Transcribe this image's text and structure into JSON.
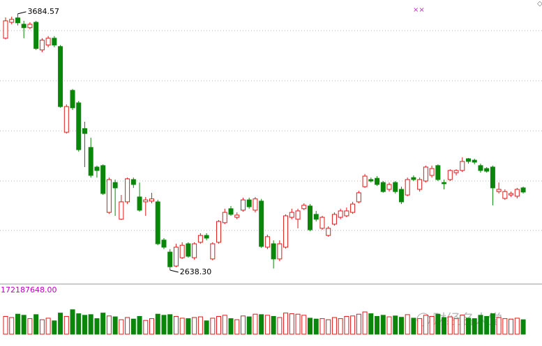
{
  "chart_data": {
    "type": "candlestick",
    "up_color": "#e01818",
    "down_color": "#0a860a",
    "ylim": [
      2590,
      3741
    ],
    "open": [
      3585,
      3650,
      3668,
      3642,
      3628,
      3650,
      3537,
      3557,
      3585,
      3551,
      3201,
      3372,
      3321,
      3216,
      3139,
      3059,
      3065,
      2874,
      2996,
      2846,
      2917,
      3008,
      2937,
      2917,
      2920,
      2917,
      2761,
      2712,
      2655,
      2689,
      2746,
      2689,
      2752,
      2780,
      2684,
      2752,
      2832,
      2889,
      2854,
      2883,
      2925,
      2883,
      2920,
      2732,
      2746,
      2684,
      2732,
      2854,
      2846,
      2889,
      2900,
      2866,
      2809,
      2780,
      2826,
      2854,
      2860,
      2874,
      2917,
      2979,
      3008,
      3013,
      2996,
      2968,
      2996,
      2968,
      2945,
      3016,
      2968,
      3002,
      3025,
      3065,
      2996,
      3008,
      3036,
      3045,
      3093,
      3087,
      3065,
      3053,
      3059,
      2959,
      2931,
      2945,
      2940,
      2974
    ],
    "high": [
      3670,
      3673,
      3684.57,
      3656,
      3650,
      3656,
      3585,
      3594,
      3594,
      3557,
      3315,
      3378,
      3329,
      3244,
      3179,
      3065,
      3070,
      3016,
      3008,
      2945,
      3016,
      3016,
      2996,
      2937,
      2954,
      2925,
      2769,
      2724,
      2746,
      2752,
      2752,
      2752,
      2789,
      2789,
      2752,
      2843,
      2889,
      2900,
      2874,
      2934,
      2934,
      2937,
      2929,
      2783,
      2760,
      2760,
      2866,
      2889,
      2889,
      2911,
      2908,
      2880,
      2860,
      2817,
      2874,
      2889,
      2894,
      2917,
      2962,
      3031,
      3016,
      3022,
      3002,
      2996,
      3002,
      2979,
      3016,
      3025,
      3016,
      3065,
      3065,
      3070,
      3008,
      3050,
      3050,
      3099,
      3096,
      3093,
      3073,
      3059,
      3065,
      2996,
      2968,
      2959,
      2974,
      2979
    ],
    "low": [
      3580,
      3642,
      3637,
      3585,
      3622,
      3537,
      3528,
      3548,
      3548,
      3301,
      3196,
      3292,
      3122,
      3059,
      3016,
      3016,
      2945,
      2868,
      2860,
      2843,
      2908,
      2974,
      2877,
      2860,
      2911,
      2740,
      2724,
      2638.3,
      2650,
      2684,
      2689,
      2681,
      2746,
      2760,
      2678,
      2746,
      2826,
      2860,
      2846,
      2877,
      2889,
      2874,
      2729,
      2724,
      2645,
      2675,
      2726,
      2846,
      2809,
      2883,
      2797,
      2837,
      2803,
      2775,
      2820,
      2846,
      2854,
      2868,
      2911,
      2974,
      2996,
      2982,
      2954,
      2959,
      2951,
      2908,
      2940,
      3002,
      2959,
      2996,
      3016,
      3002,
      2968,
      3002,
      3025,
      3039,
      3073,
      3070,
      3036,
      3036,
      2903,
      2951,
      2925,
      2937,
      2931,
      2951
    ],
    "close": [
      3656,
      3662,
      3648,
      3628,
      3642,
      3543,
      3577,
      3585,
      3557,
      3306,
      3306,
      3301,
      3130,
      3196,
      3025,
      3045,
      2951,
      3008,
      2974,
      2917,
      3011,
      2988,
      2883,
      2925,
      2929,
      2746,
      2732,
      2652,
      2732,
      2740,
      2695,
      2746,
      2780,
      2769,
      2746,
      2837,
      2874,
      2866,
      2863,
      2925,
      2897,
      2929,
      2735,
      2775,
      2684,
      2746,
      2860,
      2874,
      2880,
      2903,
      2803,
      2846,
      2854,
      2809,
      2866,
      2880,
      2880,
      2908,
      2954,
      3022,
      3002,
      2988,
      2959,
      2988,
      2959,
      2917,
      3008,
      3008,
      3008,
      3059,
      3053,
      3008,
      2991,
      3045,
      3045,
      3082,
      3082,
      3079,
      3045,
      3042,
      2974,
      2968,
      2959,
      2951,
      2968,
      2957
    ],
    "volume": [
      80000000,
      75000000,
      90000000,
      85000000,
      70000000,
      88000000,
      65000000,
      72000000,
      60000000,
      95000000,
      80000000,
      110000000,
      92000000,
      85000000,
      88000000,
      70000000,
      95000000,
      82000000,
      78000000,
      65000000,
      75000000,
      68000000,
      80000000,
      62000000,
      70000000,
      90000000,
      85000000,
      88000000,
      80000000,
      72000000,
      70000000,
      75000000,
      78000000,
      60000000,
      72000000,
      80000000,
      85000000,
      70000000,
      65000000,
      82000000,
      78000000,
      90000000,
      88000000,
      85000000,
      80000000,
      75000000,
      95000000,
      92000000,
      90000000,
      85000000,
      72000000,
      68000000,
      70000000,
      65000000,
      75000000,
      70000000,
      80000000,
      82000000,
      90000000,
      100000000,
      92000000,
      80000000,
      85000000,
      78000000,
      82000000,
      76000000,
      88000000,
      72000000,
      70000000,
      85000000,
      80000000,
      90000000,
      75000000,
      78000000,
      70000000,
      86000000,
      72000000,
      70000000,
      85000000,
      80000000,
      92000000,
      75000000,
      70000000,
      68000000,
      72000000,
      65000000
    ],
    "volume_ylim": [
      0,
      172187648
    ],
    "volume_ticks": [
      {
        "value": 172187648,
        "label": "172187648.00"
      }
    ],
    "annotations": [
      {
        "value": 3684.57,
        "label": "3684.57"
      },
      {
        "value": 2638.3,
        "label": "2638.30"
      }
    ],
    "flag": "××",
    "watermark": "财经名人堂"
  }
}
